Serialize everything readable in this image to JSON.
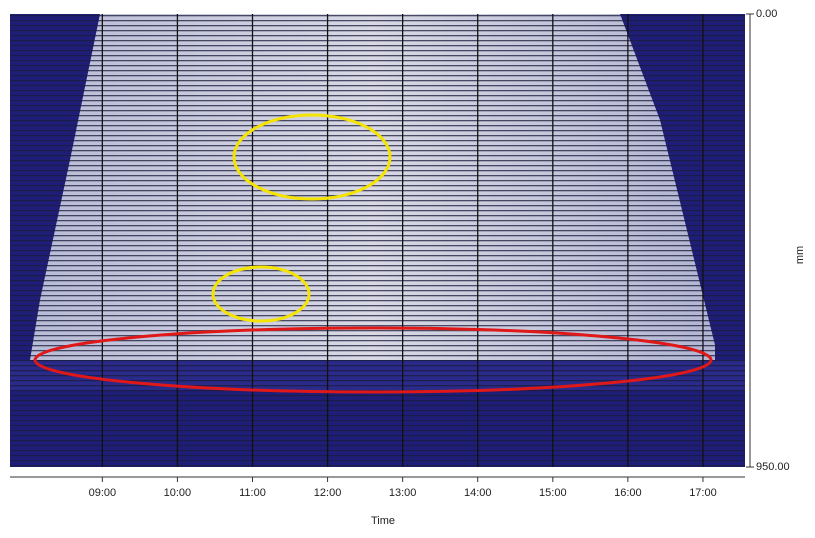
{
  "chart_data": {
    "type": "heatmap",
    "x_label": "Time",
    "y_label": "mm",
    "xlim": [
      7.77,
      17.56
    ],
    "xticks": [
      {
        "value": 9,
        "label": "09:00"
      },
      {
        "value": 10,
        "label": "10:00"
      },
      {
        "value": 11,
        "label": "11:00"
      },
      {
        "value": 12,
        "label": "12:00"
      },
      {
        "value": 13,
        "label": "13:00"
      },
      {
        "value": 14,
        "label": "14:00"
      },
      {
        "value": 15,
        "label": "15:00"
      },
      {
        "value": 16,
        "label": "16:00"
      },
      {
        "value": 17,
        "label": "17:00"
      }
    ],
    "ylim": [
      0,
      950
    ],
    "yticks": [
      {
        "value": 0,
        "label": "0.00"
      },
      {
        "value": 950,
        "label": "950.00"
      }
    ],
    "y_inverted": true,
    "y_axis_side": "right",
    "grid": true
  }
}
